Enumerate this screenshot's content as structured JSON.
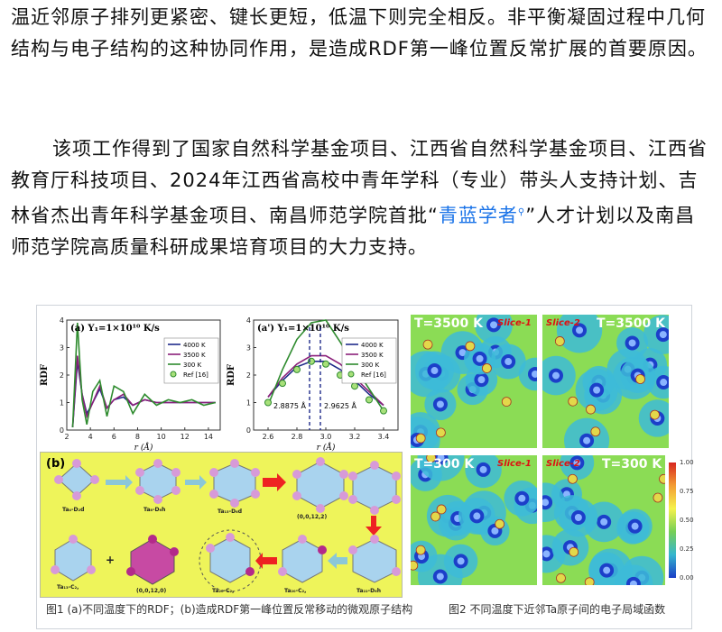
{
  "article": {
    "paragraph1": "温近邻原子排列更紧密、键长更短，低温下则完全相反。非平衡凝固过程中几何结构与电子结构的这种协同作用，是造成RDF第一峰位置反常扩展的首要原因。",
    "paragraph2_before_link": "该项工作得到了国家自然科学基金项目、江西省自然科学基金项目、江西省教育厅科技项目、2024年江西省高校中青年学科（专业）带头人支持计划、吉林省杰出青年科学基金项目、南昌师范学院首批“",
    "paragraph2_link": "青蓝学者",
    "paragraph2_after_link": "”人才计划以及南昌师范学院高质量科研成果培育项目的大力支持。"
  },
  "figure1": {
    "caption": "图1 (a)不同温度下的RDF；(b)造成RDF第一峰位置反常移动的微观原子结构",
    "panel_a": {
      "label": "(a)",
      "rate": "Υ₁=1×10¹⁰ K/s",
      "ylabel": "RDF",
      "xlabel": "r (Å)",
      "xticks": [
        "2",
        "4",
        "6",
        "8",
        "10",
        "12",
        "14"
      ],
      "yticks": [
        "0",
        "1",
        "2",
        "3",
        "4"
      ],
      "legend": [
        "4000 K",
        "3500 K",
        "300 K",
        "Ref [16]"
      ]
    },
    "panel_a2": {
      "label": "(a')",
      "rate": "Υ₁=1×10¹⁰ K/s",
      "ylabel": "RDF",
      "xlabel": "r (Å)",
      "xticks": [
        "2.6",
        "2.8",
        "3.0",
        "3.2",
        "3.4"
      ],
      "yticks": [
        "0",
        "1",
        "2",
        "3",
        "4"
      ],
      "legend": [
        "4000 K",
        "3500 K",
        "300 K",
        "Ref [16]"
      ],
      "annot_left": "2.8875 Å",
      "annot_right": "2.9625 Å"
    },
    "panel_b": {
      "label": "(b)",
      "top_row": [
        "Ta₄-D₂d",
        "Ta₈-D₆h",
        "Ta₁₅-D₆d",
        "(0,0,12,2)",
        ""
      ],
      "bottom_row": [
        "Ta₁₃-C₂,",
        "+",
        "(0,0,12,0)",
        "Ta₂₀-C₂,",
        "Ta₂₀-C₂,",
        "Ta₂₂-D₆h"
      ]
    }
  },
  "figure2": {
    "caption": "图2 不同温度下近邻Ta原子间的电子局域函数",
    "panels": [
      {
        "temp": "T=3500 K",
        "slice": "Slice-1"
      },
      {
        "temp": "T=3500 K",
        "slice": "Slice-2"
      },
      {
        "temp": "T=300 K",
        "slice": "Slice-1"
      },
      {
        "temp": "T=300 K",
        "slice": "Slice-2"
      }
    ],
    "colorbar_ticks": [
      "1.00",
      "0.75",
      "0.50",
      "0.25",
      "0.00"
    ]
  },
  "chart_data": [
    {
      "type": "line",
      "title": "(a) Υ₁=1×10¹⁰ K/s",
      "xlabel": "r (Å)",
      "ylabel": "RDF",
      "xlim": [
        2,
        15
      ],
      "ylim": [
        0,
        4
      ],
      "x": [
        2.5,
        2.9,
        3.3,
        3.7,
        4.2,
        4.8,
        5.4,
        6.0,
        6.8,
        7.6,
        8.6,
        9.6,
        10.6,
        11.6,
        12.6,
        13.6,
        14.6
      ],
      "series": [
        {
          "name": "4000 K",
          "values": [
            0.1,
            2.5,
            1.3,
            0.6,
            1.0,
            1.5,
            0.8,
            1.1,
            1.2,
            0.9,
            1.1,
            1.0,
            1.0,
            1.0,
            1.0,
            1.0,
            1.0
          ]
        },
        {
          "name": "3500 K",
          "values": [
            0.1,
            2.7,
            1.3,
            0.5,
            1.0,
            1.6,
            0.8,
            1.1,
            1.3,
            0.9,
            1.1,
            1.0,
            1.0,
            1.0,
            1.0,
            1.0,
            1.0
          ]
        },
        {
          "name": "300 K",
          "values": [
            0.1,
            3.9,
            1.1,
            0.2,
            1.4,
            1.8,
            0.5,
            1.6,
            1.4,
            0.6,
            1.3,
            0.9,
            1.1,
            1.0,
            1.1,
            0.9,
            1.0
          ]
        }
      ]
    },
    {
      "type": "line",
      "title": "(a') Υ₁=1×10¹⁰ K/s",
      "xlabel": "r (Å)",
      "ylabel": "RDF",
      "xlim": [
        2.5,
        3.5
      ],
      "ylim": [
        0,
        4
      ],
      "x": [
        2.6,
        2.7,
        2.8,
        2.9,
        3.0,
        3.1,
        3.2,
        3.3,
        3.4
      ],
      "series": [
        {
          "name": "4000 K",
          "values": [
            1.2,
            1.8,
            2.3,
            2.5,
            2.5,
            2.2,
            1.8,
            1.3,
            0.9
          ]
        },
        {
          "name": "3500 K",
          "values": [
            1.2,
            1.9,
            2.4,
            2.7,
            2.7,
            2.4,
            1.9,
            1.4,
            0.9
          ]
        },
        {
          "name": "300 K",
          "values": [
            0.9,
            2.2,
            3.3,
            3.9,
            4.0,
            3.2,
            2.3,
            1.5,
            0.7
          ]
        },
        {
          "name": "Ref [16]",
          "values": [
            1.0,
            1.7,
            2.2,
            2.5,
            2.4,
            2.0,
            1.6,
            1.1,
            0.7
          ]
        }
      ]
    }
  ]
}
